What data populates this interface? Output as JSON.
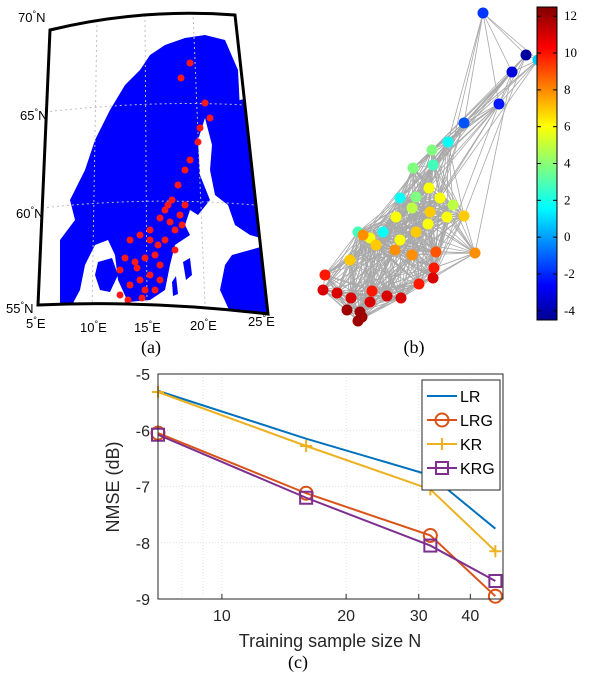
{
  "captions": {
    "a": "(a)",
    "b": "(b)",
    "c": "(c)"
  },
  "map": {
    "lat_labels": [
      {
        "deg": "70",
        "hemi": "N"
      },
      {
        "deg": "65",
        "hemi": "N"
      },
      {
        "deg": "60",
        "hemi": "N"
      },
      {
        "deg": "55",
        "hemi": "N"
      }
    ],
    "lon_labels": [
      {
        "deg": "5",
        "hemi": "E"
      },
      {
        "deg": "10",
        "hemi": "E"
      },
      {
        "deg": "15",
        "hemi": "E"
      },
      {
        "deg": "20",
        "hemi": "E"
      },
      {
        "deg": "25",
        "hemi": "E"
      }
    ],
    "colors": {
      "land": "#0000ff",
      "station": "#ff1a1a",
      "grid": "#bfbfbf"
    }
  },
  "colorbar": {
    "ticks": [
      "12",
      "10",
      "8",
      "6",
      "4",
      "2",
      "0",
      "-2",
      "-4"
    ],
    "range": [
      -4.5,
      12.5
    ],
    "colormap": "jet"
  },
  "graph": {
    "edge_color": "#a8a8a8"
  },
  "chart_data": {
    "type": "line",
    "title": "",
    "xlabel": "Training sample size N",
    "ylabel": "NMSE (dB)",
    "xscale": "log",
    "xlim": [
      7,
      48
    ],
    "ylim": [
      -9,
      -5
    ],
    "xticks": [
      "10",
      "20",
      "30",
      "40"
    ],
    "yticks": [
      "-5",
      "-6",
      "-7",
      "-8",
      "-9"
    ],
    "grid": true,
    "legend_position": "top-right",
    "x": [
      7,
      16,
      32,
      46
    ],
    "series": [
      {
        "name": "LR",
        "color": "#0072bd",
        "marker": "none",
        "values": [
          -5.3,
          -6.15,
          -6.8,
          -7.75
        ]
      },
      {
        "name": "LRG",
        "color": "#d95319",
        "marker": "circle",
        "values": [
          -6.05,
          -7.12,
          -7.87,
          -8.95
        ]
      },
      {
        "name": "KR",
        "color": "#edb120",
        "marker": "plus",
        "values": [
          -5.32,
          -6.28,
          -7.05,
          -8.15
        ]
      },
      {
        "name": "KRG",
        "color": "#7e2f8e",
        "marker": "square",
        "values": [
          -6.08,
          -7.2,
          -8.05,
          -8.68
        ]
      }
    ]
  }
}
